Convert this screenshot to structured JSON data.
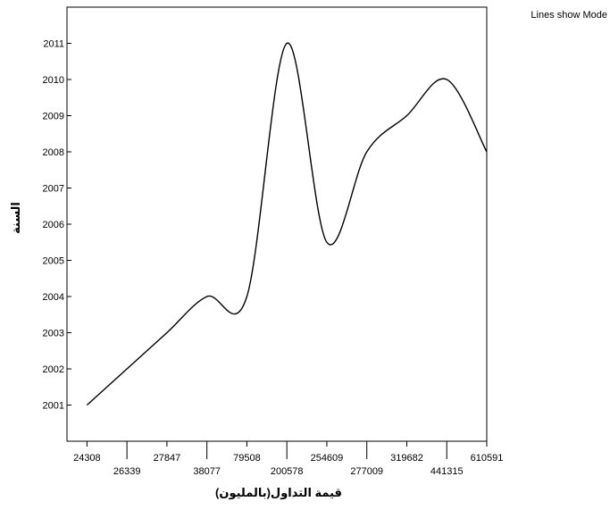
{
  "chart_data": {
    "type": "line",
    "curve": "smooth",
    "note": "Lines show Mode",
    "xlabel": "قيمة التداول(بالمليون)",
    "ylabel": "السنة",
    "categories": [
      "24308",
      "26339",
      "27847",
      "38077",
      "79508",
      "200578",
      "254609",
      "277009",
      "319682",
      "441315",
      "610591"
    ],
    "series": [
      {
        "values": [
          2001,
          2002,
          2003,
          2004,
          2004,
          2011,
          2005.5,
          2008,
          2009,
          2010,
          2008
        ]
      }
    ],
    "yticks": [
      2001,
      2002,
      2003,
      2004,
      2005,
      2006,
      2007,
      2008,
      2009,
      2010,
      2011
    ],
    "ylim": [
      2000,
      2012
    ],
    "grid": false,
    "colors": {
      "line": "#000000",
      "axis": "#000000",
      "background": "#ffffff"
    }
  }
}
